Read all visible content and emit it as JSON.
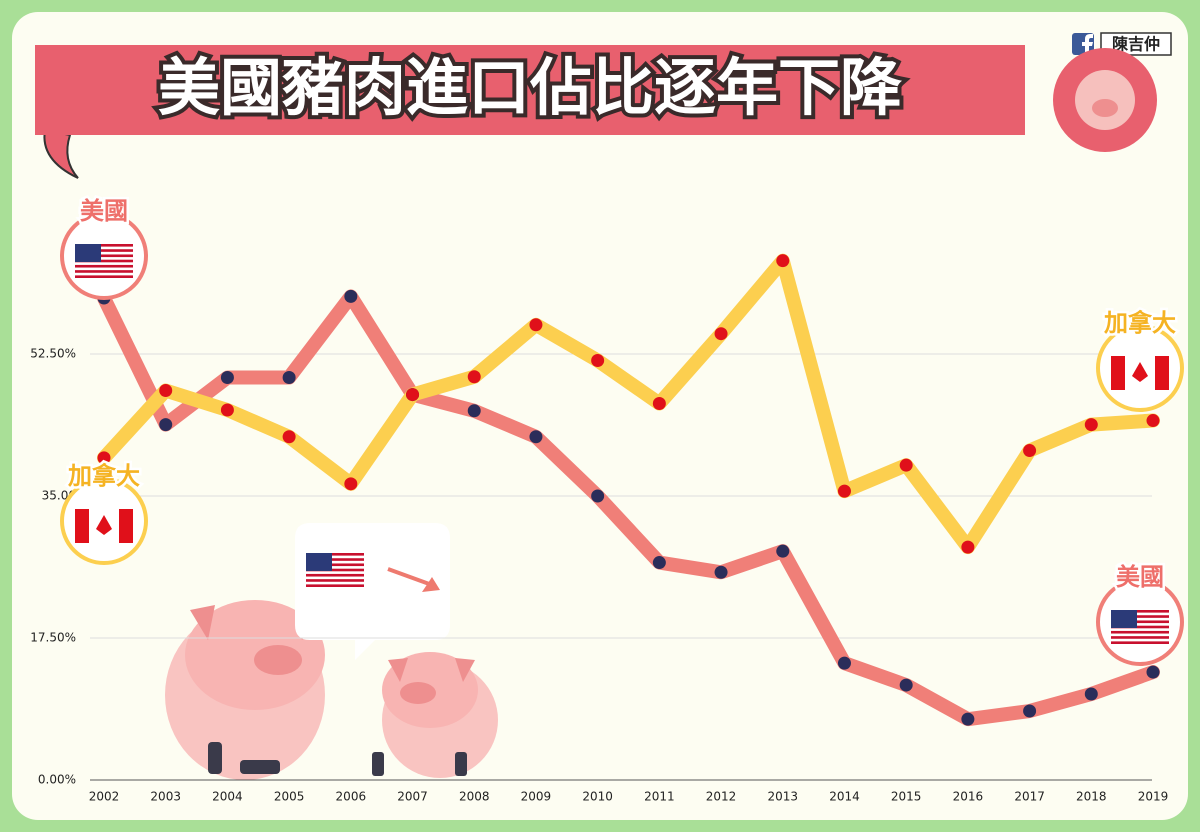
{
  "chart_data": {
    "type": "line",
    "title": "美國豬肉進口佔比逐年下降",
    "author": "陳吉仲",
    "categories": [
      "2002",
      "2003",
      "2004",
      "2005",
      "2006",
      "2007",
      "2008",
      "2009",
      "2010",
      "2011",
      "2012",
      "2013",
      "2014",
      "2015",
      "2016",
      "2017",
      "2018",
      "2019"
    ],
    "series": [
      {
        "name": "美國",
        "color": "#f07f78",
        "marker_color": "#2b2d5a",
        "values": [
          59.4,
          43.8,
          49.6,
          49.6,
          59.6,
          47.5,
          45.5,
          42.3,
          35.0,
          26.8,
          25.6,
          28.2,
          14.4,
          11.7,
          7.5,
          8.5,
          10.6,
          13.3
        ]
      },
      {
        "name": "加拿大",
        "color": "#fccf4f",
        "marker_color": "#e0101a",
        "values": [
          39.7,
          48.0,
          45.6,
          42.3,
          36.5,
          47.5,
          49.7,
          56.1,
          51.7,
          46.4,
          55.0,
          64.0,
          35.6,
          38.8,
          28.7,
          40.6,
          43.8,
          44.3
        ]
      }
    ],
    "ylim": [
      0,
      70
    ],
    "yticks": [
      {
        "value": 0,
        "label": "0.00%"
      },
      {
        "value": 17.5,
        "label": "17.50%"
      },
      {
        "value": 35,
        "label": "35.00"
      },
      {
        "value": 52.5,
        "label": "52.50%"
      }
    ],
    "grid": true
  }
}
